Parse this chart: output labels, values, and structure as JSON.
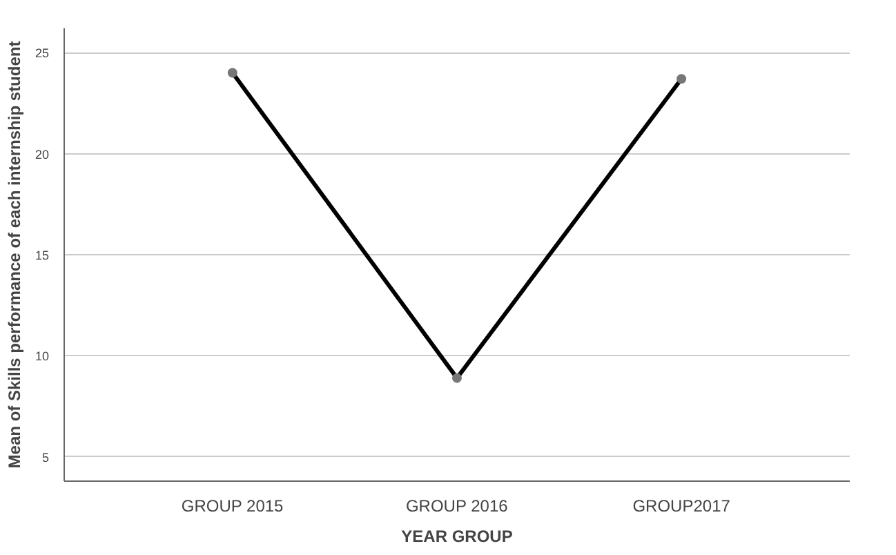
{
  "chart_data": {
    "type": "line",
    "xlabel": "YEAR GROUP",
    "ylabel": "Mean of Skills performance of each internship student",
    "categories": [
      "GROUP 2015",
      "GROUP 2016",
      "GROUP2017"
    ],
    "series": [
      {
        "color": "#000000",
        "values": [
          24.0,
          8.9,
          23.7
        ]
      }
    ],
    "ylim": [
      3.8,
      26.2
    ],
    "yticks": [
      5,
      10,
      15,
      20,
      25
    ],
    "grid": "y",
    "marker": "circle"
  }
}
